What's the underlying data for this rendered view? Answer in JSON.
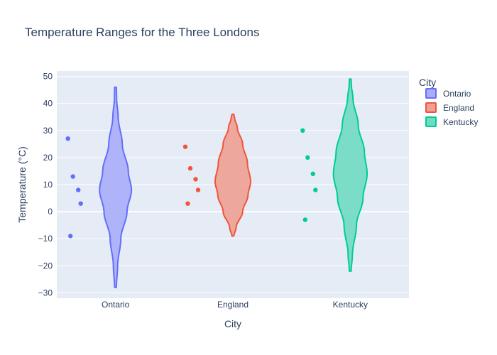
{
  "chart_data": {
    "type": "violin",
    "title": "Temperature Ranges for the Three Londons",
    "xlabel": "City",
    "ylabel": "Temperature (°C)",
    "ylim": [
      -32,
      52
    ],
    "yticks": [
      -30,
      -20,
      -10,
      0,
      10,
      20,
      30,
      40,
      50
    ],
    "grid": true,
    "legend_title": "City",
    "legend_position": "top-right",
    "categories": [
      "Ontario",
      "England",
      "Kentucky"
    ],
    "series": [
      {
        "name": "Ontario",
        "color": "#636efa",
        "fill": "#a9aefb",
        "points": [
          27,
          13,
          8,
          3,
          -9
        ],
        "range": [
          -28,
          46
        ],
        "profile": [
          [
            -28,
            0.05
          ],
          [
            -20,
            0.12
          ],
          [
            -10,
            0.3
          ],
          [
            0,
            0.65
          ],
          [
            8,
            0.9
          ],
          [
            15,
            0.72
          ],
          [
            25,
            0.38
          ],
          [
            35,
            0.15
          ],
          [
            42,
            0.06
          ],
          [
            46,
            0.05
          ]
        ]
      },
      {
        "name": "England",
        "color": "#ef553b",
        "fill": "#eda094",
        "points": [
          24,
          16,
          12,
          8,
          3
        ],
        "range": [
          -9,
          36
        ],
        "profile": [
          [
            -9,
            0.05
          ],
          [
            -6,
            0.18
          ],
          [
            0,
            0.55
          ],
          [
            6,
            0.85
          ],
          [
            11,
            1.0
          ],
          [
            18,
            0.82
          ],
          [
            25,
            0.55
          ],
          [
            31,
            0.25
          ],
          [
            34.5,
            0.1
          ],
          [
            36,
            0.05
          ]
        ]
      },
      {
        "name": "Kentucky",
        "color": "#00cc96",
        "fill": "#6fdcc0",
        "points": [
          30,
          20,
          14,
          8,
          -3
        ],
        "range": [
          -22,
          49
        ],
        "profile": [
          [
            -22,
            0.05
          ],
          [
            -16,
            0.12
          ],
          [
            -5,
            0.35
          ],
          [
            5,
            0.72
          ],
          [
            14,
            0.95
          ],
          [
            22,
            0.8
          ],
          [
            32,
            0.45
          ],
          [
            42,
            0.15
          ],
          [
            47,
            0.06
          ],
          [
            49,
            0.05
          ]
        ]
      }
    ]
  }
}
